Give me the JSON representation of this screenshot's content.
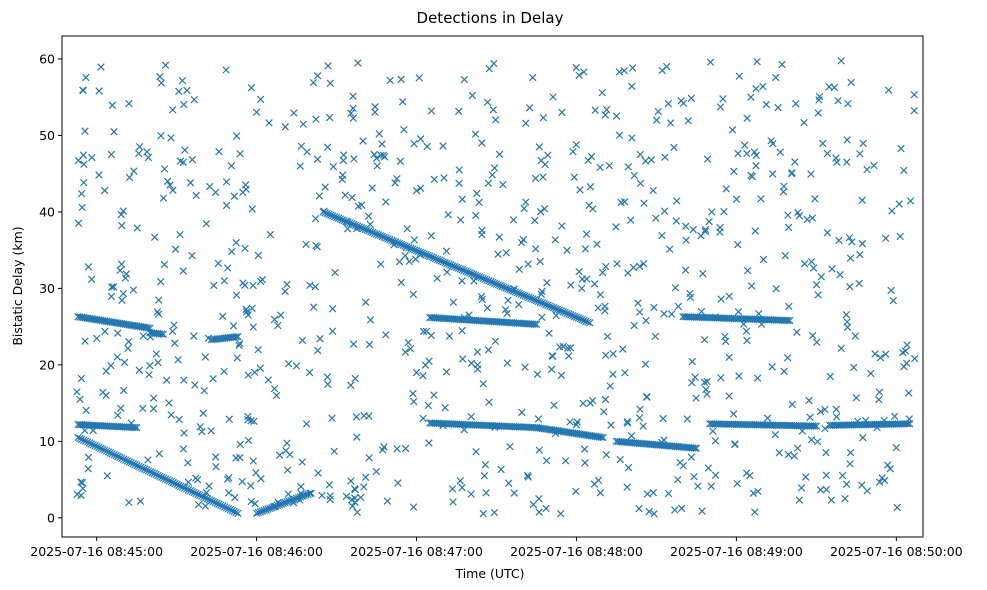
{
  "chart_data": {
    "type": "scatter",
    "title": "Detections in Delay",
    "xlabel": "Time (UTC)",
    "ylabel": "Bistatic Delay (km)",
    "marker": "x",
    "color": "#1f77b4",
    "grid": false,
    "legend": null,
    "x_axis": {
      "type": "time",
      "start": "2025-07-16 08:44:47",
      "end": "2025-07-16 08:50:10",
      "ticks": [
        {
          "value": "2025-07-16 08:45:00",
          "label": "2025-07-16 08:45:00"
        },
        {
          "value": "2025-07-16 08:46:00",
          "label": "2025-07-16 08:46:00"
        },
        {
          "value": "2025-07-16 08:47:00",
          "label": "2025-07-16 08:47:00"
        },
        {
          "value": "2025-07-16 08:48:00",
          "label": "2025-07-16 08:48:00"
        },
        {
          "value": "2025-07-16 08:49:00",
          "label": "2025-07-16 08:49:00"
        },
        {
          "value": "2025-07-16 08:50:00",
          "label": "2025-07-16 08:50:00"
        }
      ]
    },
    "y_axis": {
      "min": -2.5,
      "max": 63,
      "ticks": [
        0,
        10,
        20,
        30,
        40,
        50,
        60
      ]
    },
    "tracks": [
      {
        "x_start": "2025-07-16 08:44:53",
        "x_end": "2025-07-16 08:45:53",
        "y_start": 10.5,
        "y_end": 0.6
      },
      {
        "x_start": "2025-07-16 08:46:00",
        "x_end": "2025-07-16 08:46:20",
        "y_start": 0.6,
        "y_end": 3.2
      },
      {
        "x_start": "2025-07-16 08:46:25",
        "x_end": "2025-07-16 08:48:05",
        "y_start": 40,
        "y_end": 25.5
      },
      {
        "x_start": "2025-07-16 08:44:53",
        "x_end": "2025-07-16 08:45:20",
        "y_start": 26.3,
        "y_end": 24.8
      },
      {
        "x_start": "2025-07-16 08:45:20",
        "x_end": "2025-07-16 08:45:25",
        "y_start": 24.2,
        "y_end": 24
      },
      {
        "x_start": "2025-07-16 08:45:43",
        "x_end": "2025-07-16 08:45:53",
        "y_start": 23.3,
        "y_end": 23.7
      },
      {
        "x_start": "2025-07-16 08:47:05",
        "x_end": "2025-07-16 08:47:45",
        "y_start": 26.2,
        "y_end": 25.3
      },
      {
        "x_start": "2025-07-16 08:48:40",
        "x_end": "2025-07-16 08:49:20",
        "y_start": 26.3,
        "y_end": 25.8
      },
      {
        "x_start": "2025-07-16 08:44:53",
        "x_end": "2025-07-16 08:45:15",
        "y_start": 12.2,
        "y_end": 11.8
      },
      {
        "x_start": "2025-07-16 08:47:05",
        "x_end": "2025-07-16 08:47:45",
        "y_start": 12.4,
        "y_end": 11.8
      },
      {
        "x_start": "2025-07-16 08:47:45",
        "x_end": "2025-07-16 08:48:10",
        "y_start": 11.8,
        "y_end": 10.5
      },
      {
        "x_start": "2025-07-16 08:48:15",
        "x_end": "2025-07-16 08:48:45",
        "y_start": 10,
        "y_end": 9.1
      },
      {
        "x_start": "2025-07-16 08:48:50",
        "x_end": "2025-07-16 08:49:30",
        "y_start": 12.3,
        "y_end": 12
      },
      {
        "x_start": "2025-07-16 08:49:35",
        "x_end": "2025-07-16 08:50:05",
        "y_start": 12.1,
        "y_end": 12.3
      }
    ],
    "point_density": "about 1200 scattered detections spanning the full axis ranges"
  }
}
